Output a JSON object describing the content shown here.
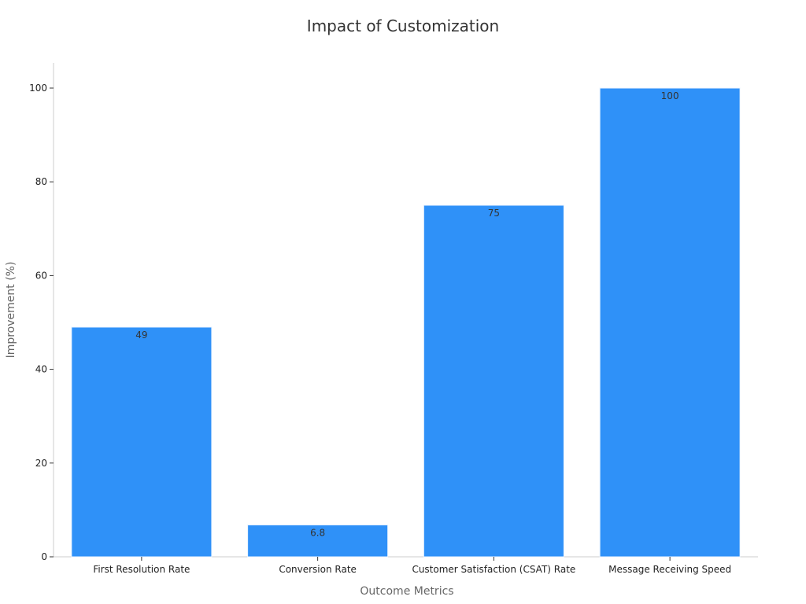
{
  "chart_data": {
    "type": "bar",
    "title": "Impact of Customization",
    "xlabel": "Outcome Metrics",
    "ylabel": "Improvement (%)",
    "categories": [
      "First Resolution Rate",
      "Conversion Rate",
      "Customer Satisfaction (CSAT) Rate",
      "Message Receiving Speed"
    ],
    "values": [
      49,
      6.8,
      75,
      100
    ],
    "value_labels": [
      "49",
      "6.8",
      "75",
      "100"
    ],
    "ylim": [
      0,
      105
    ],
    "yticks": [
      0,
      20,
      40,
      60,
      80,
      100
    ],
    "grid": false,
    "legend": "none",
    "bar_color": "#2f91f8"
  }
}
